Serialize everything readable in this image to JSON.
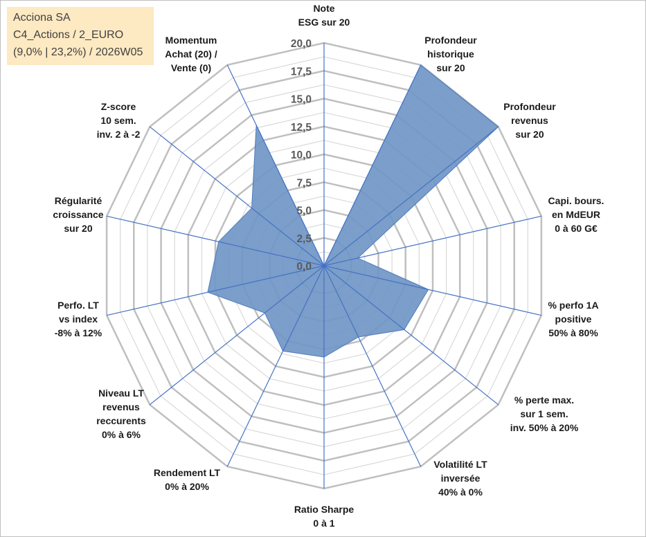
{
  "info": {
    "line1": "Acciona SA",
    "line2": "C4_Actions / 2_EURO",
    "line3": "(9,0% | 23,2%) / 2026W05"
  },
  "chart_data": {
    "type": "radar",
    "rmin": 0,
    "rmax": 20,
    "ticks": [
      "0,0",
      "2,5",
      "5,0",
      "7,5",
      "10,0",
      "12,5",
      "15,0",
      "17,5",
      "20,0"
    ],
    "tick_values": [
      0,
      2.5,
      5,
      7.5,
      10,
      12.5,
      15,
      17.5,
      20
    ],
    "grid": true,
    "colors": {
      "fill": "#7096c6",
      "stroke": "#4e7cbf",
      "axis": "#4472c4",
      "grid_major": "#bfbfbf",
      "grid_minor": "#d9d9d9"
    },
    "axes": [
      {
        "label": [
          "Note",
          "ESG sur 20"
        ]
      },
      {
        "label": [
          "Profondeur",
          "historique",
          "sur 20"
        ]
      },
      {
        "label": [
          "Profondeur",
          "revenus",
          "sur 20"
        ]
      },
      {
        "label": [
          "Capi. bours.",
          "en MdEUR",
          "0 à 60 G€"
        ]
      },
      {
        "label": [
          "% perfo 1A",
          "positive",
          "50% à 80%"
        ]
      },
      {
        "label": [
          "% perte max.",
          "sur 1 sem.",
          "inv. 50% à 20%"
        ]
      },
      {
        "label": [
          "Volatilité LT",
          "inversée",
          "40% à 0%"
        ]
      },
      {
        "label": [
          "Ratio Sharpe",
          "0 à 1"
        ]
      },
      {
        "label": [
          "Rendement LT",
          "0% à 20%"
        ]
      },
      {
        "label": [
          "Niveau LT",
          "revenus",
          "reccurents",
          "0% à 6%"
        ]
      },
      {
        "label": [
          "Perfo. LT",
          "vs index",
          "-8% à 12%"
        ]
      },
      {
        "label": [
          "Régularité",
          "croissance",
          "sur 20"
        ]
      },
      {
        "label": [
          "Z-score",
          "10 sem.",
          "inv. 2 à -2"
        ]
      },
      {
        "label": [
          "Momentum",
          "Achat (20) /",
          "Vente (0)"
        ]
      }
    ],
    "series": [
      {
        "values": [
          0,
          20,
          20,
          3.1,
          9.6,
          9.2,
          7.1,
          8.2,
          8.5,
          6.8,
          10.7,
          9.7,
          8.3,
          14
        ]
      }
    ]
  }
}
